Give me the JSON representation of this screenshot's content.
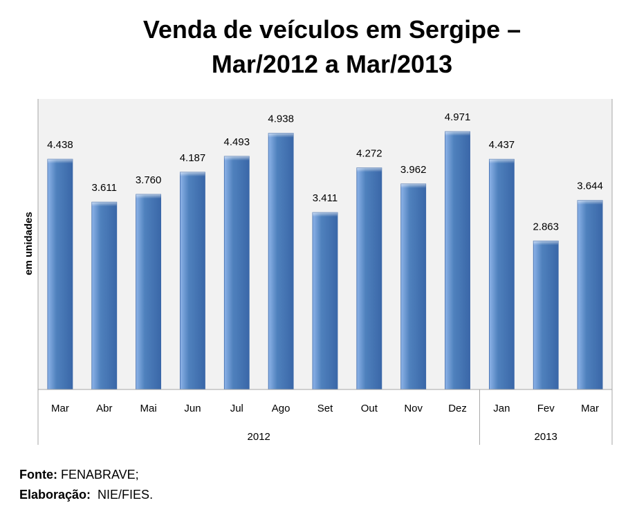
{
  "title": {
    "line1": "Venda de veículos em Sergipe –",
    "line2": "Mar/2012 a Mar/2013"
  },
  "chart_data": {
    "type": "bar",
    "ylabel": "em unidades",
    "ylim": [
      0,
      5600
    ],
    "grid": false,
    "legend": "none",
    "categories": [
      "Mar",
      "Abr",
      "Mai",
      "Jun",
      "Jul",
      "Ago",
      "Set",
      "Out",
      "Nov",
      "Dez",
      "Jan",
      "Fev",
      "Mar"
    ],
    "values": [
      4438,
      3611,
      3760,
      4187,
      4493,
      4938,
      3411,
      4272,
      3962,
      4971,
      4437,
      2863,
      3644
    ],
    "data_labels": [
      "4.438",
      "3.611",
      "3.760",
      "4.187",
      "4.493",
      "4.938",
      "3.411",
      "4.272",
      "3.962",
      "4.971",
      "4.437",
      "2.863",
      "3.644"
    ],
    "year_groups": [
      {
        "label": "2012",
        "count": 10
      },
      {
        "label": "2013",
        "count": 3
      }
    ],
    "colors": {
      "bar": "#4f81bd",
      "bar_light": "#8db3e8",
      "bar_dark": "#3a67a8",
      "plot_bg": "#f2f2f2",
      "axis": "#a6a6a6"
    }
  },
  "source": {
    "fonte_label": "Fonte:",
    "fonte_value": " FENABRAVE;",
    "elab_label": "Elaboração:",
    "elab_value": "  NIE/FIES."
  }
}
